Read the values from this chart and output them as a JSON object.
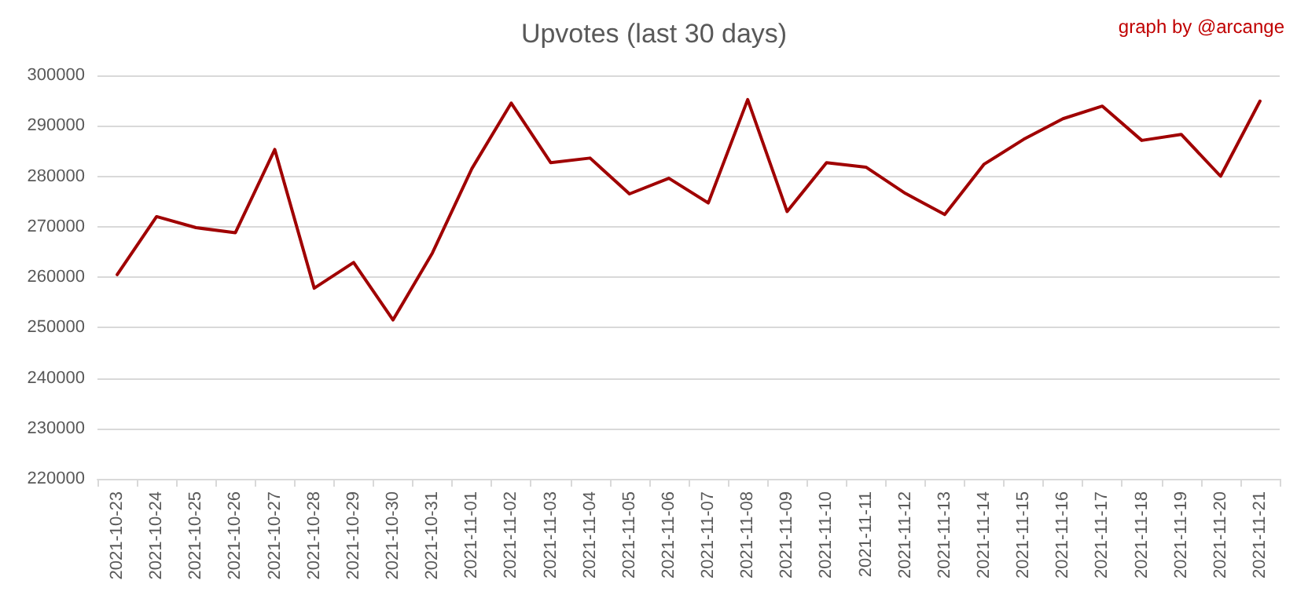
{
  "chart_data": {
    "type": "line",
    "title": "Upvotes (last 30 days)",
    "annotations": [
      "graph by @arcange"
    ],
    "categories": [
      "2021-10-23",
      "2021-10-24",
      "2021-10-25",
      "2021-10-26",
      "2021-10-27",
      "2021-10-28",
      "2021-10-29",
      "2021-10-30",
      "2021-10-31",
      "2021-11-01",
      "2021-11-02",
      "2021-11-03",
      "2021-11-04",
      "2021-11-05",
      "2021-11-06",
      "2021-11-07",
      "2021-11-08",
      "2021-11-09",
      "2021-11-10",
      "2021-11-11",
      "2021-11-12",
      "2021-11-13",
      "2021-11-14",
      "2021-11-15",
      "2021-11-16",
      "2021-11-17",
      "2021-11-18",
      "2021-11-19",
      "2021-11-20",
      "2021-11-21"
    ],
    "series": [
      {
        "color": "#a00000",
        "values": [
          260500,
          272000,
          269800,
          268800,
          285300,
          257800,
          262900,
          251500,
          264800,
          281500,
          294500,
          282700,
          283600,
          276500,
          279600,
          274700,
          295200,
          273000,
          282700,
          281800,
          276600,
          272400,
          282400,
          287300,
          291400,
          293900,
          287100,
          288300,
          280000,
          294900
        ]
      }
    ],
    "ylim": [
      220000,
      300000
    ],
    "yticks": [
      220000,
      230000,
      240000,
      250000,
      260000,
      270000,
      280000,
      290000,
      300000
    ],
    "grid": "y",
    "marker": "none",
    "line_style": "solid"
  }
}
